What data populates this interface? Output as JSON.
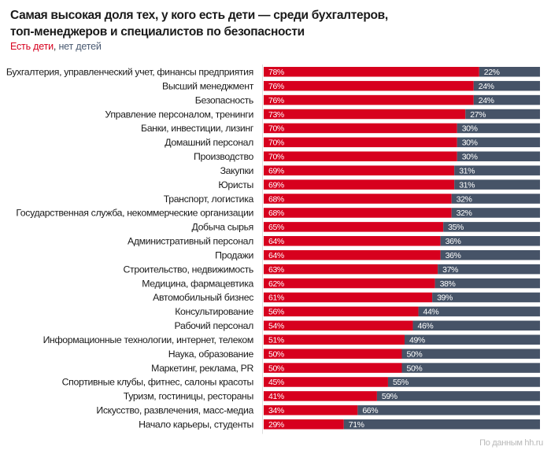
{
  "title_line1": "Самая высокая доля тех, у кого есть дети — среди бухгалтеров,",
  "title_line2": "топ-менеджеров и специалистов по безопасности",
  "legend": {
    "with_children": "Есть дети",
    "separator": ", ",
    "without_children": "нет детей"
  },
  "source": "По данным hh.ru",
  "colors": {
    "with_children": "#d7001e",
    "without_children": "#465367",
    "axis": "#dddddd"
  },
  "chart_data": {
    "type": "bar",
    "orientation": "horizontal",
    "stacked": true,
    "title": "Самая высокая доля тех, у кого есть дети — среди бухгалтеров, топ-менеджеров и специалистов по безопасности",
    "xlabel": "",
    "ylabel": "",
    "xlim": [
      0,
      100
    ],
    "grid": false,
    "legend_placement": "top-left",
    "categories": [
      "Бухгалтерия, управленческий учет, финансы предприятия",
      "Высший менеджмент",
      "Безопасность",
      "Управление персоналом, тренинги",
      "Банки, инвестиции, лизинг",
      "Домашний персонал",
      "Производство",
      "Закупки",
      "Юристы",
      "Транспорт, логистика",
      "Государственная служба, некоммерческие организации",
      "Добыча сырья",
      "Административный персонал",
      "Продажи",
      "Строительство, недвижимость",
      "Медицина, фармацевтика",
      "Автомобильный бизнес",
      "Консультирование",
      "Рабочий персонал",
      "Информационные технологии, интернет, телеком",
      "Наука, образование",
      "Маркетинг, реклама, PR",
      "Спортивные клубы, фитнес, салоны красоты",
      "Туризм, гостиницы, рестораны",
      "Искусство, развлечения, масс-медиа",
      "Начало карьеры, студенты"
    ],
    "series": [
      {
        "name": "Есть дети",
        "values": [
          78,
          76,
          76,
          73,
          70,
          70,
          70,
          69,
          69,
          68,
          68,
          65,
          64,
          64,
          63,
          62,
          61,
          56,
          54,
          51,
          50,
          50,
          45,
          41,
          34,
          29
        ]
      },
      {
        "name": "нет детей",
        "values": [
          22,
          24,
          24,
          27,
          30,
          30,
          30,
          31,
          31,
          32,
          32,
          35,
          36,
          36,
          37,
          38,
          39,
          44,
          46,
          49,
          50,
          50,
          55,
          59,
          66,
          71
        ]
      }
    ],
    "value_suffix": "%"
  }
}
